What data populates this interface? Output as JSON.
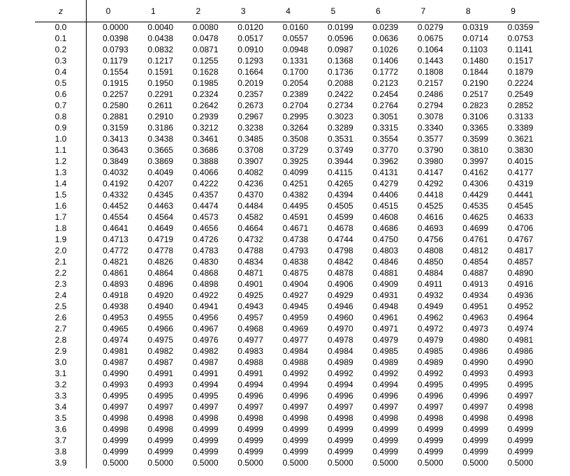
{
  "table": {
    "header": {
      "z_label": "z",
      "columns": [
        "0",
        "1",
        "2",
        "3",
        "4",
        "5",
        "6",
        "7",
        "8",
        "9"
      ]
    },
    "rows": [
      {
        "z": "0.0",
        "values": [
          "0.0000",
          "0.0040",
          "0.0080",
          "0.0120",
          "0.0160",
          "0.0199",
          "0.0239",
          "0.0279",
          "0.0319",
          "0.0359"
        ]
      },
      {
        "z": "0.1",
        "values": [
          "0.0398",
          "0.0438",
          "0.0478",
          "0.0517",
          "0.0557",
          "0.0596",
          "0.0636",
          "0.0675",
          "0.0714",
          "0.0753"
        ]
      },
      {
        "z": "0.2",
        "values": [
          "0.0793",
          "0.0832",
          "0.0871",
          "0.0910",
          "0.0948",
          "0.0987",
          "0.1026",
          "0.1064",
          "0.1103",
          "0.1141"
        ]
      },
      {
        "z": "0.3",
        "values": [
          "0.1179",
          "0.1217",
          "0.1255",
          "0.1293",
          "0.1331",
          "0.1368",
          "0.1406",
          "0.1443",
          "0.1480",
          "0.1517"
        ]
      },
      {
        "z": "0.4",
        "values": [
          "0.1554",
          "0.1591",
          "0.1628",
          "0.1664",
          "0.1700",
          "0.1736",
          "0.1772",
          "0.1808",
          "0.1844",
          "0.1879"
        ]
      },
      {
        "z": "0.5",
        "values": [
          "0.1915",
          "0.1950",
          "0.1985",
          "0.2019",
          "0.2054",
          "0.2088",
          "0.2123",
          "0.2157",
          "0.2190",
          "0.2224"
        ]
      },
      {
        "z": "0.6",
        "values": [
          "0.2257",
          "0.2291",
          "0.2324",
          "0.2357",
          "0.2389",
          "0.2422",
          "0.2454",
          "0.2486",
          "0.2517",
          "0.2549"
        ]
      },
      {
        "z": "0.7",
        "values": [
          "0.2580",
          "0.2611",
          "0.2642",
          "0.2673",
          "0.2704",
          "0.2734",
          "0.2764",
          "0.2794",
          "0.2823",
          "0.2852"
        ]
      },
      {
        "z": "0.8",
        "values": [
          "0.2881",
          "0.2910",
          "0.2939",
          "0.2967",
          "0.2995",
          "0.3023",
          "0.3051",
          "0.3078",
          "0.3106",
          "0.3133"
        ]
      },
      {
        "z": "0.9",
        "values": [
          "0.3159",
          "0.3186",
          "0.3212",
          "0.3238",
          "0.3264",
          "0.3289",
          "0.3315",
          "0.3340",
          "0.3365",
          "0.3389"
        ]
      },
      {
        "z": "1.0",
        "values": [
          "0.3413",
          "0.3438",
          "0.3461",
          "0.3485",
          "0.3508",
          "0.3531",
          "0.3554",
          "0.3577",
          "0.3599",
          "0.3621"
        ]
      },
      {
        "z": "1.1",
        "values": [
          "0.3643",
          "0.3665",
          "0.3686",
          "0.3708",
          "0.3729",
          "0.3749",
          "0.3770",
          "0.3790",
          "0.3810",
          "0.3830"
        ]
      },
      {
        "z": "1.2",
        "values": [
          "0.3849",
          "0.3869",
          "0.3888",
          "0.3907",
          "0.3925",
          "0.3944",
          "0.3962",
          "0.3980",
          "0.3997",
          "0.4015"
        ]
      },
      {
        "z": "1.3",
        "values": [
          "0.4032",
          "0.4049",
          "0.4066",
          "0.4082",
          "0.4099",
          "0.4115",
          "0.4131",
          "0.4147",
          "0.4162",
          "0.4177"
        ]
      },
      {
        "z": "1.4",
        "values": [
          "0.4192",
          "0.4207",
          "0.4222",
          "0.4236",
          "0.4251",
          "0.4265",
          "0.4279",
          "0.4292",
          "0.4306",
          "0.4319"
        ]
      },
      {
        "z": "1.5",
        "values": [
          "0.4332",
          "0.4345",
          "0.4357",
          "0.4370",
          "0.4382",
          "0.4394",
          "0.4406",
          "0.4418",
          "0.4429",
          "0.4441"
        ]
      },
      {
        "z": "1.6",
        "values": [
          "0.4452",
          "0.4463",
          "0.4474",
          "0.4484",
          "0.4495",
          "0.4505",
          "0.4515",
          "0.4525",
          "0.4535",
          "0.4545"
        ]
      },
      {
        "z": "1.7",
        "values": [
          "0.4554",
          "0.4564",
          "0.4573",
          "0.4582",
          "0.4591",
          "0.4599",
          "0.4608",
          "0.4616",
          "0.4625",
          "0.4633"
        ]
      },
      {
        "z": "1.8",
        "values": [
          "0.4641",
          "0.4649",
          "0.4656",
          "0.4664",
          "0.4671",
          "0.4678",
          "0.4686",
          "0.4693",
          "0.4699",
          "0.4706"
        ]
      },
      {
        "z": "1.9",
        "values": [
          "0.4713",
          "0.4719",
          "0.4726",
          "0.4732",
          "0.4738",
          "0.4744",
          "0.4750",
          "0.4756",
          "0.4761",
          "0.4767"
        ]
      },
      {
        "z": "2.0",
        "values": [
          "0.4772",
          "0.4778",
          "0.4783",
          "0.4788",
          "0.4793",
          "0.4798",
          "0.4803",
          "0.4808",
          "0.4812",
          "0.4817"
        ]
      },
      {
        "z": "2.1",
        "values": [
          "0.4821",
          "0.4826",
          "0.4830",
          "0.4834",
          "0.4838",
          "0.4842",
          "0.4846",
          "0.4850",
          "0.4854",
          "0.4857"
        ]
      },
      {
        "z": "2.2",
        "values": [
          "0.4861",
          "0.4864",
          "0.4868",
          "0.4871",
          "0.4875",
          "0.4878",
          "0.4881",
          "0.4884",
          "0.4887",
          "0.4890"
        ]
      },
      {
        "z": "2.3",
        "values": [
          "0.4893",
          "0.4896",
          "0.4898",
          "0.4901",
          "0.4904",
          "0.4906",
          "0.4909",
          "0.4911",
          "0.4913",
          "0.4916"
        ]
      },
      {
        "z": "2.4",
        "values": [
          "0.4918",
          "0.4920",
          "0.4922",
          "0.4925",
          "0.4927",
          "0.4929",
          "0.4931",
          "0.4932",
          "0.4934",
          "0.4936"
        ]
      },
      {
        "z": "2.5",
        "values": [
          "0.4938",
          "0.4940",
          "0.4941",
          "0.4943",
          "0.4945",
          "0.4946",
          "0.4948",
          "0.4949",
          "0.4951",
          "0.4952"
        ]
      },
      {
        "z": "2.6",
        "values": [
          "0.4953",
          "0.4955",
          "0.4956",
          "0.4957",
          "0.4959",
          "0.4960",
          "0.4961",
          "0.4962",
          "0.4963",
          "0.4964"
        ]
      },
      {
        "z": "2.7",
        "values": [
          "0.4965",
          "0.4966",
          "0.4967",
          "0.4968",
          "0.4969",
          "0.4970",
          "0.4971",
          "0.4972",
          "0.4973",
          "0.4974"
        ]
      },
      {
        "z": "2.8",
        "values": [
          "0.4974",
          "0.4975",
          "0.4976",
          "0.4977",
          "0.4977",
          "0.4978",
          "0.4979",
          "0.4979",
          "0.4980",
          "0.4981"
        ]
      },
      {
        "z": "2.9",
        "values": [
          "0.4981",
          "0.4982",
          "0.4982",
          "0.4983",
          "0.4984",
          "0.4984",
          "0.4985",
          "0.4985",
          "0.4986",
          "0.4986"
        ]
      },
      {
        "z": "3.0",
        "values": [
          "0.4987",
          "0.4987",
          "0.4987",
          "0.4988",
          "0.4988",
          "0.4989",
          "0.4989",
          "0.4989",
          "0.4990",
          "0.4990"
        ]
      },
      {
        "z": "3.1",
        "values": [
          "0.4990",
          "0.4991",
          "0.4991",
          "0.4991",
          "0.4992",
          "0.4992",
          "0.4992",
          "0.4992",
          "0.4993",
          "0.4993"
        ]
      },
      {
        "z": "3.2",
        "values": [
          "0.4993",
          "0.4993",
          "0.4994",
          "0.4994",
          "0.4994",
          "0.4994",
          "0.4994",
          "0.4995",
          "0.4995",
          "0.4995"
        ]
      },
      {
        "z": "3.3",
        "values": [
          "0.4995",
          "0.4995",
          "0.4995",
          "0.4996",
          "0.4996",
          "0.4996",
          "0.4996",
          "0.4996",
          "0.4996",
          "0.4997"
        ]
      },
      {
        "z": "3.4",
        "values": [
          "0.4997",
          "0.4997",
          "0.4997",
          "0.4997",
          "0.4997",
          "0.4997",
          "0.4997",
          "0.4997",
          "0.4997",
          "0.4998"
        ]
      },
      {
        "z": "3.5",
        "values": [
          "0.4998",
          "0.4998",
          "0.4998",
          "0.4998",
          "0.4998",
          "0.4998",
          "0.4998",
          "0.4998",
          "0.4998",
          "0.4998"
        ]
      },
      {
        "z": "3.6",
        "values": [
          "0.4998",
          "0.4998",
          "0.4999",
          "0.4999",
          "0.4999",
          "0.4999",
          "0.4999",
          "0.4999",
          "0.4999",
          "0.4999"
        ]
      },
      {
        "z": "3.7",
        "values": [
          "0.4999",
          "0.4999",
          "0.4999",
          "0.4999",
          "0.4999",
          "0.4999",
          "0.4999",
          "0.4999",
          "0.4999",
          "0.4999"
        ]
      },
      {
        "z": "3.8",
        "values": [
          "0.4999",
          "0.4999",
          "0.4999",
          "0.4999",
          "0.4999",
          "0.4999",
          "0.4999",
          "0.4999",
          "0.4999",
          "0.4999"
        ]
      },
      {
        "z": "3.9",
        "values": [
          "0.5000",
          "0.5000",
          "0.5000",
          "0.5000",
          "0.5000",
          "0.5000",
          "0.5000",
          "0.5000",
          "0.5000",
          "0.5000"
        ]
      }
    ]
  }
}
